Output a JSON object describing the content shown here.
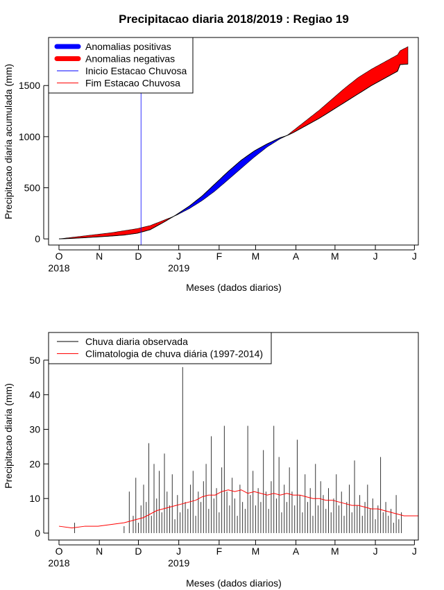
{
  "chart_data": [
    {
      "type": "area",
      "title": "Precipitacao diaria 2018/2019 : Regiao 19",
      "xlabel": "Meses (dados diarios)",
      "ylabel": "Precipitacao diaria acumulada (mm)",
      "x_tick_labels": [
        "O",
        "N",
        "D",
        "J",
        "F",
        "M",
        "A",
        "M",
        "J",
        "J"
      ],
      "x_year_labels": [
        {
          "month_index": 0,
          "label": "2018"
        },
        {
          "month_index": 3,
          "label": "2019"
        }
      ],
      "y_ticks": [
        0,
        500,
        1000,
        1500
      ],
      "ylim": [
        -60,
        1970
      ],
      "xlim_days": [
        -8,
        276
      ],
      "legend_position": "top-left",
      "legend": [
        {
          "label": "Anomalias positivas",
          "color": "#0000ff",
          "kind": "fill"
        },
        {
          "label": "Anomalias negativas",
          "color": "#ff0000",
          "kind": "fill"
        },
        {
          "label": "Inicio Estacao Chuvosa",
          "color": "#0000ff",
          "kind": "line"
        },
        {
          "label": "Fim Estacao Chuvosa",
          "color": "#ff0000",
          "kind": "line"
        }
      ],
      "start_season_day": 63,
      "x_unit": "days since 1 Oct 2018",
      "series": [
        {
          "name": "observed accumulated",
          "x": [
            0,
            10,
            20,
            30,
            40,
            50,
            60,
            70,
            80,
            90,
            100,
            110,
            120,
            130,
            140,
            150,
            160,
            170,
            175,
            180,
            190,
            200,
            210,
            220,
            230,
            240,
            250,
            260,
            262,
            268
          ],
          "values": [
            0,
            5,
            12,
            20,
            28,
            38,
            55,
            90,
            160,
            235,
            320,
            420,
            540,
            660,
            770,
            860,
            930,
            990,
            1010,
            1040,
            1110,
            1180,
            1260,
            1340,
            1420,
            1500,
            1570,
            1640,
            1705,
            1710
          ]
        },
        {
          "name": "climatology accumulated",
          "x": [
            0,
            10,
            20,
            30,
            40,
            50,
            60,
            70,
            80,
            90,
            100,
            110,
            120,
            130,
            140,
            150,
            160,
            170,
            175,
            180,
            190,
            200,
            210,
            220,
            230,
            240,
            250,
            260,
            262,
            268
          ],
          "values": [
            0,
            15,
            30,
            45,
            60,
            80,
            100,
            130,
            180,
            230,
            295,
            375,
            470,
            580,
            690,
            800,
            900,
            980,
            1010,
            1060,
            1160,
            1260,
            1370,
            1480,
            1580,
            1660,
            1730,
            1800,
            1840,
            1880
          ]
        }
      ]
    },
    {
      "type": "bar",
      "xlabel": "Meses (dados diarios)",
      "ylabel": "Precipitacao diaria (mm)",
      "x_tick_labels": [
        "O",
        "N",
        "D",
        "J",
        "F",
        "M",
        "A",
        "M",
        "J",
        "J"
      ],
      "x_year_labels": [
        {
          "month_index": 0,
          "label": "2018"
        },
        {
          "month_index": 3,
          "label": "2019"
        }
      ],
      "y_ticks": [
        0,
        10,
        20,
        30,
        40,
        50
      ],
      "ylim": [
        -2,
        58
      ],
      "xlim_days": [
        -8,
        276
      ],
      "legend_position": "top-left",
      "legend": [
        {
          "label": "Chuva diaria observada",
          "color": "#000000",
          "kind": "line"
        },
        {
          "label": "Climatologia de chuva diária (1997-2014)",
          "color": "#ff0000",
          "kind": "line"
        }
      ],
      "x_unit": "days since 1 Oct 2018",
      "series": [
        {
          "name": "Chuva diaria observada",
          "x": [
            12,
            50,
            54,
            57,
            59,
            61,
            63,
            65,
            67,
            69,
            71,
            73,
            75,
            77,
            79,
            81,
            83,
            85,
            87,
            89,
            91,
            93,
            95,
            97,
            99,
            101,
            103,
            105,
            107,
            109,
            111,
            113,
            115,
            117,
            119,
            121,
            123,
            125,
            127,
            129,
            131,
            133,
            135,
            137,
            139,
            141,
            143,
            145,
            147,
            149,
            151,
            153,
            155,
            157,
            159,
            161,
            163,
            165,
            167,
            169,
            171,
            173,
            175,
            177,
            179,
            181,
            183,
            185,
            187,
            189,
            191,
            193,
            195,
            197,
            199,
            201,
            203,
            205,
            207,
            209,
            211,
            213,
            215,
            217,
            219,
            221,
            223,
            225,
            227,
            229,
            231,
            233,
            235,
            237,
            239,
            241,
            243,
            245,
            247,
            249,
            251,
            253,
            255,
            257,
            259,
            261,
            263
          ],
          "values": [
            3,
            2,
            12,
            5,
            16,
            3,
            8,
            14,
            9,
            26,
            5,
            20,
            10,
            18,
            6,
            23,
            12,
            8,
            17,
            4,
            11,
            6,
            48,
            9,
            7,
            14,
            18,
            5,
            12,
            9,
            15,
            20,
            7,
            28,
            10,
            13,
            6,
            19,
            31,
            12,
            8,
            16,
            10,
            5,
            14,
            9,
            7,
            31,
            11,
            18,
            8,
            13,
            9,
            24,
            12,
            7,
            15,
            31,
            10,
            22,
            6,
            14,
            9,
            19,
            12,
            8,
            27,
            11,
            6,
            17,
            9,
            13,
            5,
            20,
            8,
            15,
            11,
            7,
            13,
            6,
            10,
            17,
            8,
            12,
            5,
            9,
            14,
            6,
            21,
            8,
            11,
            5,
            9,
            14,
            7,
            10,
            4,
            8,
            22,
            6,
            9,
            5,
            7,
            3,
            11,
            4,
            6
          ]
        },
        {
          "name": "Climatologia de chuva diária (1997-2014)",
          "x": [
            0,
            10,
            20,
            30,
            40,
            50,
            55,
            60,
            65,
            70,
            75,
            80,
            85,
            90,
            95,
            100,
            105,
            110,
            115,
            120,
            125,
            130,
            135,
            140,
            145,
            150,
            155,
            160,
            165,
            170,
            175,
            180,
            185,
            190,
            195,
            200,
            205,
            210,
            215,
            220,
            225,
            230,
            235,
            240,
            245,
            250,
            255,
            260,
            265,
            270,
            276
          ],
          "values": [
            2,
            1.5,
            2,
            2,
            2.5,
            3,
            3.5,
            4,
            4.5,
            5.5,
            6.5,
            7,
            7.5,
            8,
            8.5,
            9,
            9.5,
            10.5,
            11,
            11,
            12,
            12.5,
            12,
            12.5,
            11.5,
            12,
            11.5,
            11,
            11.5,
            11,
            11.5,
            11,
            11,
            10.5,
            10,
            10,
            9.5,
            9.5,
            9,
            8.5,
            8,
            8,
            7.5,
            7,
            7,
            6.5,
            6,
            5.5,
            5,
            5,
            5
          ]
        }
      ]
    }
  ]
}
